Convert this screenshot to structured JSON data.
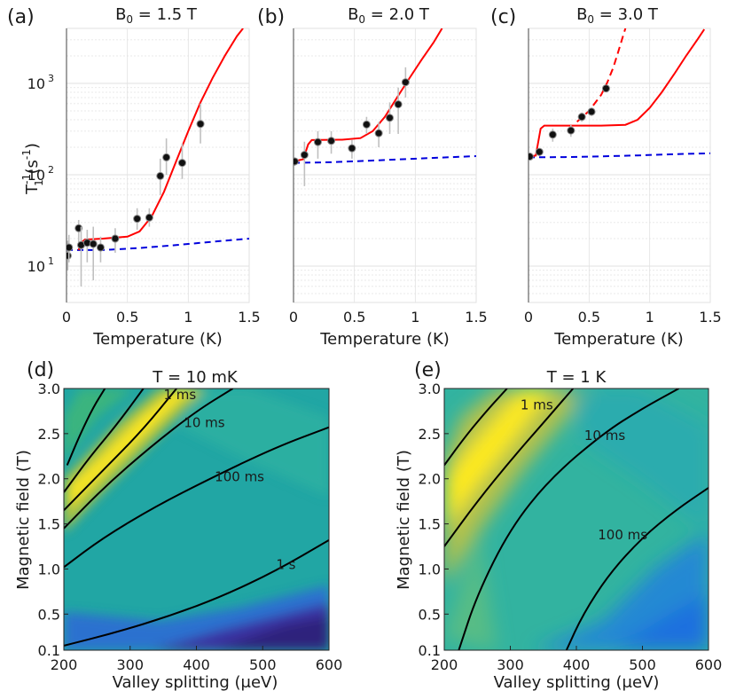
{
  "chart_data": [
    {
      "panel": "(a)",
      "type": "scatter",
      "title": "B",
      "title_sub": "0",
      "title_rest": " = 1.5 T",
      "xlabel": "Temperature (K)",
      "ylabel_main": "T",
      "ylabel_sup": "-1",
      "ylabel_sub": "1",
      "ylabel_unit": " (s",
      "ylabel_unit_sup": "-1",
      "ylabel_close": ")",
      "yscale": "log",
      "xlim": [
        0,
        1.5
      ],
      "ylim": [
        4,
        4000
      ],
      "xticks": [
        "0",
        "0.5",
        "1",
        "1.5"
      ],
      "xtick_values": [
        0,
        0.5,
        1,
        1.5
      ],
      "yticks": [
        "10",
        "10",
        "10"
      ],
      "ytick_exp": [
        "1",
        "2",
        "3"
      ],
      "ytick_values": [
        10,
        100,
        1000
      ],
      "points": [
        {
          "x": 0.01,
          "y": 13,
          "lo": 9,
          "hi": 19
        },
        {
          "x": 0.02,
          "y": 16,
          "lo": 11,
          "hi": 22
        },
        {
          "x": 0.1,
          "y": 26,
          "lo": 18,
          "hi": 32
        },
        {
          "x": 0.12,
          "y": 17,
          "lo": 6,
          "hi": 27
        },
        {
          "x": 0.17,
          "y": 18,
          "lo": 11,
          "hi": 25
        },
        {
          "x": 0.22,
          "y": 17.5,
          "lo": 7,
          "hi": 27
        },
        {
          "x": 0.28,
          "y": 16,
          "lo": 11,
          "hi": 21
        },
        {
          "x": 0.4,
          "y": 20,
          "lo": 14,
          "hi": 26
        },
        {
          "x": 0.58,
          "y": 33,
          "lo": 25,
          "hi": 43
        },
        {
          "x": 0.68,
          "y": 34,
          "lo": 27,
          "hi": 43
        },
        {
          "x": 0.77,
          "y": 97,
          "lo": 60,
          "hi": 150
        },
        {
          "x": 0.82,
          "y": 155,
          "lo": 100,
          "hi": 250
        },
        {
          "x": 0.95,
          "y": 135,
          "lo": 90,
          "hi": 220
        },
        {
          "x": 1.1,
          "y": 360,
          "lo": 220,
          "hi": 600
        }
      ],
      "fit_red": [
        [
          0.1,
          15
        ],
        [
          0.12,
          18
        ],
        [
          0.15,
          19.5
        ],
        [
          0.3,
          20
        ],
        [
          0.5,
          21
        ],
        [
          0.6,
          24
        ],
        [
          0.7,
          35
        ],
        [
          0.8,
          65
        ],
        [
          0.9,
          140
        ],
        [
          1.0,
          300
        ],
        [
          1.1,
          620
        ],
        [
          1.2,
          1150
        ],
        [
          1.3,
          2000
        ],
        [
          1.4,
          3300
        ],
        [
          1.45,
          4000
        ]
      ],
      "fit_blue": [
        [
          0,
          15
        ],
        [
          0.3,
          15
        ],
        [
          0.6,
          15.8
        ],
        [
          0.9,
          17
        ],
        [
          1.2,
          18.5
        ],
        [
          1.5,
          20
        ]
      ]
    },
    {
      "panel": "(b)",
      "type": "scatter",
      "title": "B",
      "title_sub": "0",
      "title_rest": " = 2.0 T",
      "xlabel": "Temperature (K)",
      "yscale": "log",
      "xlim": [
        0,
        1.5
      ],
      "ylim": [
        4,
        4000
      ],
      "xticks": [
        "0",
        "0.5",
        "1",
        "1.5"
      ],
      "xtick_values": [
        0,
        0.5,
        1,
        1.5
      ],
      "points": [
        {
          "x": 0.01,
          "y": 140,
          "lo": 125,
          "hi": 155
        },
        {
          "x": 0.09,
          "y": 165,
          "lo": 75,
          "hi": 230
        },
        {
          "x": 0.2,
          "y": 228,
          "lo": 150,
          "hi": 300
        },
        {
          "x": 0.31,
          "y": 235,
          "lo": 170,
          "hi": 300
        },
        {
          "x": 0.48,
          "y": 195,
          "lo": 150,
          "hi": 240
        },
        {
          "x": 0.6,
          "y": 355,
          "lo": 280,
          "hi": 430
        },
        {
          "x": 0.7,
          "y": 285,
          "lo": 200,
          "hi": 380
        },
        {
          "x": 0.79,
          "y": 420,
          "lo": 280,
          "hi": 620
        },
        {
          "x": 0.86,
          "y": 590,
          "lo": 280,
          "hi": 900
        },
        {
          "x": 0.92,
          "y": 1030,
          "lo": 700,
          "hi": 1500
        }
      ],
      "fit_red": [
        [
          0.0,
          140
        ],
        [
          0.08,
          148
        ],
        [
          0.12,
          215
        ],
        [
          0.15,
          240
        ],
        [
          0.4,
          242
        ],
        [
          0.55,
          252
        ],
        [
          0.65,
          300
        ],
        [
          0.75,
          430
        ],
        [
          0.85,
          700
        ],
        [
          0.95,
          1130
        ],
        [
          1.05,
          1800
        ],
        [
          1.15,
          2800
        ],
        [
          1.22,
          4000
        ]
      ],
      "fit_blue": [
        [
          0,
          135
        ],
        [
          0.3,
          137
        ],
        [
          0.6,
          142
        ],
        [
          0.9,
          148
        ],
        [
          1.2,
          154
        ],
        [
          1.5,
          160
        ]
      ]
    },
    {
      "panel": "(c)",
      "type": "scatter",
      "title": "B",
      "title_sub": "0",
      "title_rest": " = 3.0 T",
      "xlabel": "Temperature (K)",
      "yscale": "log",
      "xlim": [
        0,
        1.5
      ],
      "ylim": [
        4,
        4000
      ],
      "xticks": [
        "0",
        "0.5",
        "1",
        "1.5"
      ],
      "xtick_values": [
        0,
        0.5,
        1,
        1.5
      ],
      "points": [
        {
          "x": 0.01,
          "y": 158,
          "lo": 145,
          "hi": 170
        },
        {
          "x": 0.09,
          "y": 178,
          "lo": 160,
          "hi": 195
        },
        {
          "x": 0.2,
          "y": 275,
          "lo": 230,
          "hi": 320
        },
        {
          "x": 0.35,
          "y": 305,
          "lo": 260,
          "hi": 350
        },
        {
          "x": 0.44,
          "y": 430,
          "lo": 380,
          "hi": 480
        },
        {
          "x": 0.52,
          "y": 490,
          "lo": 440,
          "hi": 540
        },
        {
          "x": 0.64,
          "y": 880,
          "lo": 800,
          "hi": 960
        }
      ],
      "fit_red": [
        [
          0.0,
          158
        ],
        [
          0.06,
          162
        ],
        [
          0.1,
          320
        ],
        [
          0.13,
          345
        ],
        [
          0.4,
          345
        ],
        [
          0.6,
          345
        ],
        [
          0.8,
          352
        ],
        [
          0.9,
          400
        ],
        [
          1.0,
          540
        ],
        [
          1.1,
          800
        ],
        [
          1.2,
          1250
        ],
        [
          1.3,
          2000
        ],
        [
          1.4,
          3100
        ],
        [
          1.45,
          3900
        ]
      ],
      "fit_red_dashed": [
        [
          0.4,
          380
        ],
        [
          0.5,
          500
        ],
        [
          0.6,
          750
        ],
        [
          0.65,
          1020
        ],
        [
          0.7,
          1500
        ],
        [
          0.74,
          2200
        ],
        [
          0.78,
          3300
        ],
        [
          0.8,
          4000
        ]
      ],
      "fit_blue": [
        [
          0,
          155
        ],
        [
          0.3,
          156
        ],
        [
          0.6,
          159
        ],
        [
          0.9,
          163
        ],
        [
          1.2,
          168
        ],
        [
          1.5,
          172
        ]
      ]
    },
    {
      "panel": "(d)",
      "type": "heatmap",
      "title": "T = 10 mK",
      "xlabel": "Valley splitting (μeV)",
      "ylabel": "Magnetic field (T)",
      "xlim": [
        200,
        600
      ],
      "ylim": [
        0.1,
        3.0
      ],
      "xticks": [
        "200",
        "300",
        "400",
        "500",
        "600"
      ],
      "xtick_values": [
        200,
        300,
        400,
        500,
        600
      ],
      "yticks": [
        "0.1",
        "0.5",
        "1.0",
        "1.5",
        "2.0",
        "2.5",
        "3.0"
      ],
      "ytick_values": [
        0.1,
        0.5,
        1.0,
        1.5,
        2.0,
        2.5,
        3.0
      ],
      "contours": [
        {
          "label": "",
          "points": [
            [
              205,
              2.15
            ],
            [
              225,
              2.5
            ],
            [
              245,
              2.8
            ],
            [
              262,
              3.0
            ]
          ]
        },
        {
          "label": "",
          "points": [
            [
              200,
              1.85
            ],
            [
              240,
              2.25
            ],
            [
              280,
              2.6
            ],
            [
              320,
              3.0
            ]
          ]
        },
        {
          "label": "1 ms",
          "label_at": [
            375,
            2.93
          ],
          "points": [
            [
              200,
              1.65
            ],
            [
              260,
              2.1
            ],
            [
              320,
              2.55
            ],
            [
              370,
              3.0
            ]
          ]
        },
        {
          "label": "10 ms",
          "label_at": [
            412,
            2.62
          ],
          "points": [
            [
              200,
              1.45
            ],
            [
              260,
              1.9
            ],
            [
              330,
              2.35
            ],
            [
              400,
              2.75
            ],
            [
              455,
              3.0
            ]
          ]
        },
        {
          "label": "100 ms",
          "label_at": [
            465,
            2.02
          ],
          "points": [
            [
              200,
              1.02
            ],
            [
              260,
              1.35
            ],
            [
              340,
              1.7
            ],
            [
              420,
              2.0
            ],
            [
              520,
              2.35
            ],
            [
              600,
              2.57
            ]
          ]
        },
        {
          "label": "1 s",
          "label_at": [
            535,
            1.05
          ],
          "points": [
            [
              200,
              0.15
            ],
            [
              280,
              0.3
            ],
            [
              360,
              0.48
            ],
            [
              440,
              0.7
            ],
            [
              520,
              0.98
            ],
            [
              600,
              1.32
            ]
          ]
        }
      ]
    },
    {
      "panel": "(e)",
      "type": "heatmap",
      "title": "T = 1 K",
      "xlabel": "Valley splitting (μeV)",
      "ylabel": "Magnetic field (T)",
      "xlim": [
        200,
        600
      ],
      "ylim": [
        0.1,
        3.0
      ],
      "xticks": [
        "200",
        "300",
        "400",
        "500",
        "600"
      ],
      "xtick_values": [
        200,
        300,
        400,
        500,
        600
      ],
      "yticks": [
        "0.1",
        "0.5",
        "1.0",
        "1.5",
        "2.0",
        "2.5",
        "3.0"
      ],
      "ytick_values": [
        0.1,
        0.5,
        1.0,
        1.5,
        2.0,
        2.5,
        3.0
      ],
      "contours": [
        {
          "label": "",
          "points": [
            [
              200,
              2.15
            ],
            [
              235,
              2.5
            ],
            [
              270,
              2.8
            ],
            [
              295,
              3.0
            ]
          ]
        },
        {
          "label": "1 ms",
          "label_at": [
            340,
            2.82
          ],
          "points": [
            [
              200,
              1.25
            ],
            [
              250,
              1.75
            ],
            [
              300,
              2.2
            ],
            [
              350,
              2.62
            ],
            [
              395,
              3.0
            ]
          ]
        },
        {
          "label": "10 ms",
          "label_at": [
            443,
            2.48
          ],
          "points": [
            [
              222,
              0.1
            ],
            [
              250,
              0.72
            ],
            [
              300,
              1.45
            ],
            [
              360,
              2.0
            ],
            [
              440,
              2.5
            ],
            [
              500,
              2.78
            ],
            [
              555,
              3.0
            ]
          ]
        },
        {
          "label": "100 ms",
          "label_at": [
            470,
            1.38
          ],
          "points": [
            [
              385,
              0.1
            ],
            [
              410,
              0.5
            ],
            [
              450,
              0.95
            ],
            [
              500,
              1.35
            ],
            [
              550,
              1.65
            ],
            [
              600,
              1.9
            ]
          ]
        }
      ]
    }
  ],
  "colors": {
    "red": "#ff0000",
    "blue": "#0000dd",
    "marker": "#111111",
    "errorbar": "#c0c0c0",
    "grid": "#e2e2e2"
  }
}
